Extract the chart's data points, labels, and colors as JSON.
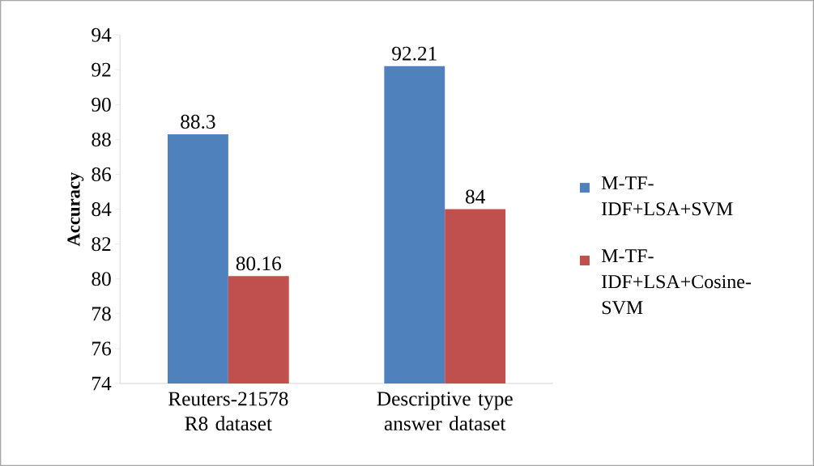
{
  "chart_data": {
    "type": "bar",
    "ylabel": "Accuracy",
    "categories": [
      "Reuters-21578 R8 dataset",
      "Descriptive type answer dataset"
    ],
    "series": [
      {
        "name": "M-TF-IDF+LSA+SVM",
        "color": "#4f81bd",
        "values": [
          88.3,
          92.21
        ]
      },
      {
        "name": "M-TF-IDF+LSA+Cosine-SVM",
        "color": "#c0504d",
        "values": [
          80.16,
          84
        ]
      }
    ],
    "ylim": [
      74,
      94
    ],
    "yticks": [
      74,
      76,
      78,
      80,
      82,
      84,
      86,
      88,
      90,
      92,
      94
    ],
    "data_labels": true,
    "legend": "right",
    "grid": false
  }
}
